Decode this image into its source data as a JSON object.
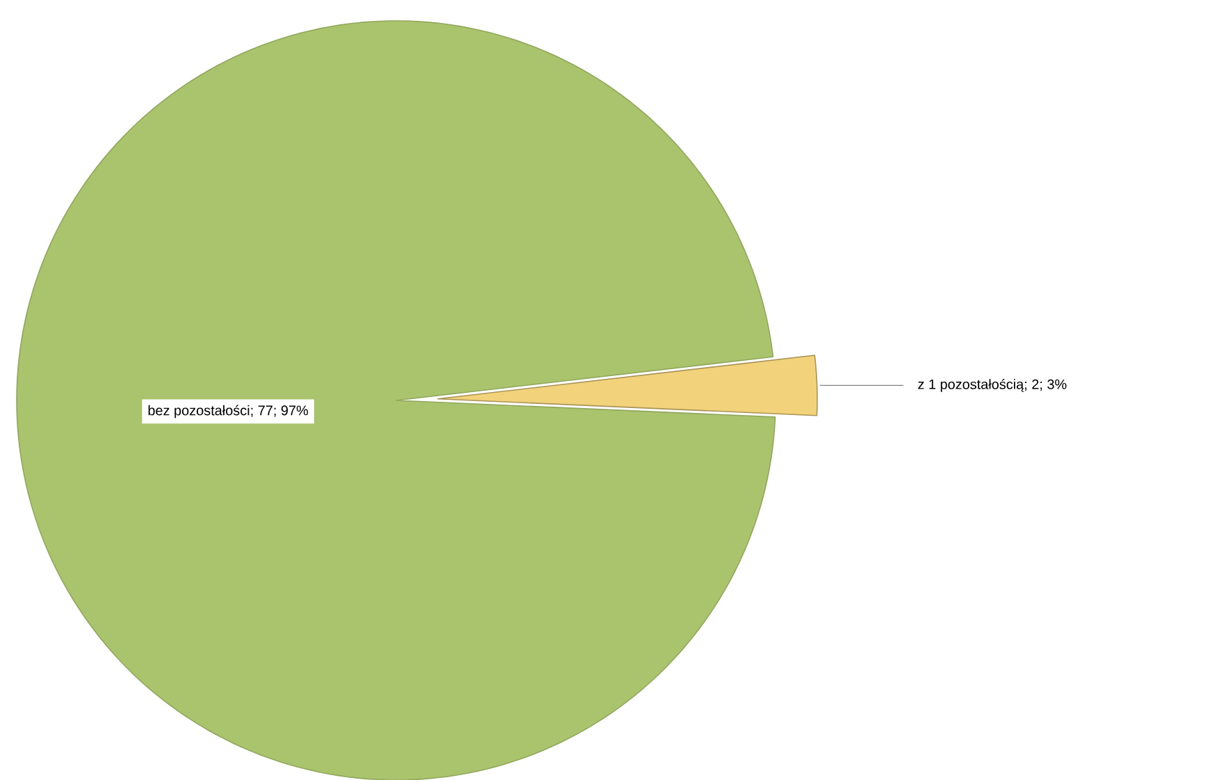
{
  "chart_data": {
    "type": "pie",
    "categories": [
      "bez pozostałości",
      "z 1 pozostałością"
    ],
    "values": [
      77,
      2
    ],
    "value_labels": [
      "; 77; 97%",
      "; 2; 3%"
    ],
    "colors": [
      "#a9c46c",
      "#f2d27a"
    ]
  }
}
